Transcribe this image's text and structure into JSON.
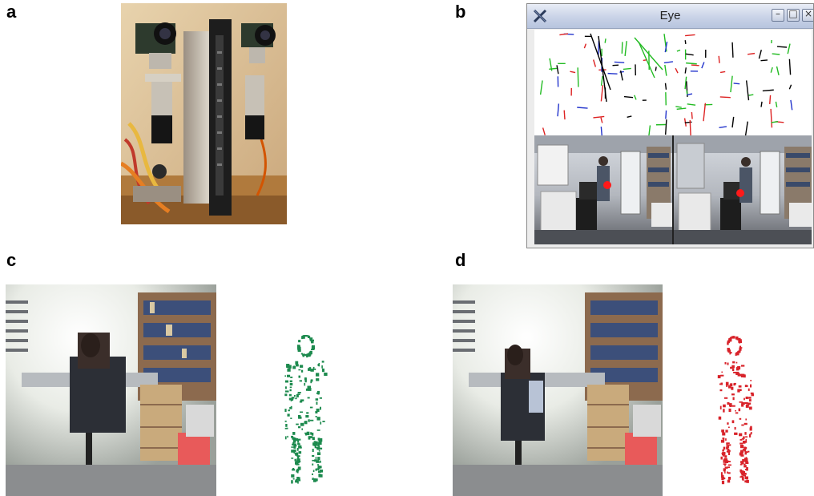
{
  "panels": {
    "a": {
      "label": "a"
    },
    "b": {
      "label": "b"
    },
    "c": {
      "label": "c"
    },
    "d": {
      "label": "d"
    }
  },
  "window": {
    "title": "Eye",
    "minimize_glyph": "–",
    "maximize_glyph": "□",
    "close_glyph": "×"
  },
  "colors": {
    "segment_black": "#000000",
    "segment_green": "#22bb22",
    "segment_red": "#dd2222",
    "segment_blue": "#2233cc",
    "tracked_marker": "#ff1a1a",
    "motion_green": "#1d8a4e",
    "motion_red": "#d8232a"
  },
  "icons": [
    "x-window-logo-icon",
    "minimize-icon",
    "maximize-icon",
    "close-icon"
  ]
}
